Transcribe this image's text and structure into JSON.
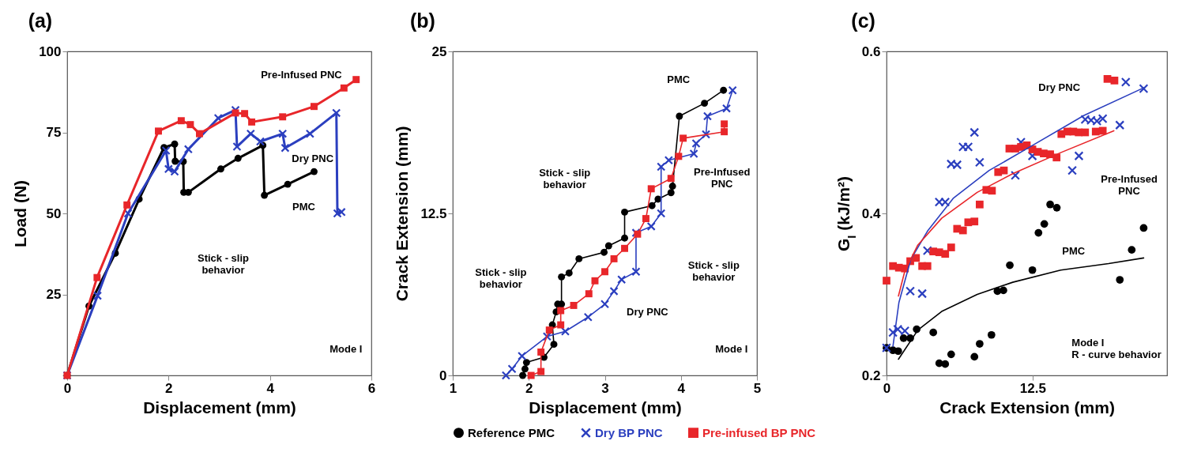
{
  "chart_data": [
    {
      "type": "line",
      "title": "(a)",
      "xlabel": "Displacement (mm)",
      "ylabel": "Load (N)",
      "xlim": [
        0,
        6
      ],
      "xticks": [
        0,
        2,
        4,
        6
      ],
      "ylim": [
        0,
        100
      ],
      "yticks": [
        {
          "value": 0,
          "label": null
        },
        25,
        50,
        75,
        100
      ],
      "grid": false,
      "x": [
        0,
        0.43,
        0.95,
        1.42,
        1.91,
        2.12,
        2.13,
        2.29,
        2.3,
        2.39,
        3.03,
        3.37,
        3.86,
        3.89,
        4.35,
        4.87
      ],
      "series": [
        {
          "color": "#000000",
          "marker": "circle",
          "values": [
            0,
            21.4,
            37.7,
            54.4,
            70.3,
            71.4,
            66.1,
            66,
            56.5,
            56.5,
            63.7,
            67,
            71,
            55.6,
            59,
            62.9
          ]
        },
        {
          "color": "#2b3fbf",
          "marker": "cross",
          "x": [
            0,
            0.6,
            1.2,
            1.95,
            2.0,
            2.12,
            2.39,
            2.98,
            3.32,
            3.35,
            3.62,
            3.81,
            4.25,
            4.3,
            4.79,
            5.31,
            5.33,
            5.41
          ],
          "values": [
            0,
            24.6,
            50,
            69.4,
            63.7,
            62.9,
            69.8,
            79.4,
            81.9,
            70.6,
            74.6,
            72.2,
            74.6,
            70.2,
            74.6,
            81,
            50,
            50.4
          ]
        },
        {
          "color": "#e8262a",
          "marker": "square",
          "x": [
            0,
            0.59,
            1.18,
            1.8,
            2.25,
            2.43,
            2.61,
            3.32,
            3.5,
            3.64,
            4.25,
            4.87,
            5.46,
            5.7
          ],
          "values": [
            0,
            30.2,
            52.6,
            75.4,
            78.6,
            77.4,
            74.6,
            81,
            80.8,
            78.2,
            79.8,
            83,
            88.7,
            91.3
          ]
        }
      ],
      "annotations": [
        "Pre-Infused PNC",
        "Dry PNC",
        "PMC",
        "Stick - slip\nbehavior",
        "Mode I"
      ]
    },
    {
      "type": "line",
      "title": "(b)",
      "xlabel": "Displacement (mm)",
      "ylabel": "Crack Extension (mm)",
      "xlim": [
        1,
        5
      ],
      "xticks": [
        1,
        2,
        3,
        4,
        5
      ],
      "ylim": [
        0,
        25
      ],
      "yticks": [
        0,
        12.5,
        25
      ],
      "grid": false,
      "legend": "bottom",
      "series": [
        {
          "name": "Reference PMC",
          "color": "#000000",
          "marker": "circle",
          "x": [
            1.92,
            1.95,
            1.97,
            2.2,
            2.33,
            2.31,
            2.36,
            2.38,
            2.43,
            2.43,
            2.53,
            2.66,
            2.99,
            3.05,
            3.26,
            3.26,
            3.62,
            3.7,
            3.87,
            3.89,
            3.98,
            4.31,
            4.56
          ],
          "values": [
            0,
            0.5,
            1.0,
            1.4,
            2.4,
            3.9,
            4.9,
            5.5,
            5.5,
            7.6,
            7.9,
            9.0,
            9.5,
            10.0,
            10.6,
            12.6,
            13.1,
            13.6,
            14.1,
            14.6,
            20.0,
            21.0,
            22.0
          ]
        },
        {
          "name": "Dry BP PNC",
          "color": "#2b3fbf",
          "marker": "cross",
          "x": [
            1.7,
            1.78,
            1.91,
            2.24,
            2.48,
            2.78,
            3.0,
            3.12,
            3.22,
            3.41,
            3.41,
            3.61,
            3.74,
            3.74,
            3.84,
            4.17,
            4.2,
            4.33,
            4.35,
            4.6,
            4.68
          ],
          "values": [
            0,
            0.5,
            1.5,
            3.0,
            3.4,
            4.5,
            5.5,
            6.5,
            7.4,
            8.0,
            11.0,
            11.5,
            12.5,
            16.1,
            16.6,
            17.1,
            17.9,
            18.6,
            20.0,
            20.6,
            22.0
          ]
        },
        {
          "name": "Pre-infused BP PNC",
          "color": "#e8262a",
          "marker": "square",
          "x": [
            2.03,
            2.16,
            2.16,
            2.27,
            2.42,
            2.42,
            2.59,
            2.79,
            2.87,
            3.0,
            3.12,
            3.26,
            3.43,
            3.54,
            3.61,
            3.87,
            3.97,
            4.03,
            4.57,
            4.57
          ],
          "values": [
            0,
            0.3,
            1.8,
            3.5,
            3.9,
            5.0,
            5.4,
            6.3,
            7.3,
            8.0,
            9.0,
            9.8,
            10.9,
            12.1,
            14.4,
            15.2,
            16.9,
            18.3,
            18.8,
            19.4
          ]
        }
      ],
      "annotations": [
        "PMC",
        "Pre-Infused\nPNC",
        "Stick - slip\nbehavior",
        "Stick - slip\nbehavior",
        "Stick - slip\nbehavior",
        "Dry PNC",
        "Mode I"
      ]
    },
    {
      "type": "scatter",
      "title": "(c)",
      "xlabel": "Crack Extension (mm)",
      "ylabel": "G$_{I}$ (kJ/m²)",
      "xlim": [
        0,
        24
      ],
      "xticks": [
        0,
        12.5
      ],
      "ylim": [
        0.2,
        0.6
      ],
      "yticks": [
        0.2,
        0.4,
        0.6
      ],
      "grid": false,
      "series": [
        {
          "color": "#000000",
          "marker": "circle",
          "x": [
            0,
            0.55,
            1.0,
            1.46,
            2.03,
            2.58,
            4.0,
            4.51,
            5.02,
            5.53,
            7.52,
            7.97,
            8.98,
            9.49,
            10.0,
            10.55,
            12.48,
            13.0,
            13.5,
            14.0,
            14.57,
            19.96,
            20.98,
            22.0
          ],
          "values": [
            0.234,
            0.231,
            0.23,
            0.246,
            0.246,
            0.257,
            0.253,
            0.215,
            0.214,
            0.226,
            0.223,
            0.239,
            0.25,
            0.304,
            0.305,
            0.336,
            0.33,
            0.376,
            0.387,
            0.411,
            0.407,
            0.318,
            0.355,
            0.382
          ]
        },
        {
          "color": "#2b3fbf",
          "marker": "cross",
          "x": [
            0,
            0.55,
            0.96,
            1.57,
            2.03,
            3.05,
            3.5,
            4.51,
            5.02,
            5.53,
            6.04,
            6.54,
            6.99,
            7.52,
            7.97,
            11.02,
            11.5,
            12.48,
            15.89,
            16.46,
            17.0,
            17.5,
            18.0,
            18.5,
            19.96,
            20.47,
            22.0
          ],
          "values": [
            0.234,
            0.253,
            0.257,
            0.255,
            0.304,
            0.301,
            0.354,
            0.414,
            0.414,
            0.461,
            0.46,
            0.482,
            0.482,
            0.5,
            0.463,
            0.447,
            0.488,
            0.471,
            0.453,
            0.471,
            0.516,
            0.515,
            0.514,
            0.517,
            0.509,
            0.562,
            0.554
          ]
        },
        {
          "color": "#e8262a",
          "marker": "square",
          "x": [
            0,
            0.55,
            1.06,
            1.57,
            2.03,
            2.52,
            3.05,
            3.5,
            4.0,
            4.51,
            5.02,
            5.53,
            6.04,
            6.54,
            6.99,
            7.52,
            7.97,
            8.54,
            9.02,
            9.55,
            10.04,
            10.51,
            11.02,
            11.5,
            12.0,
            12.48,
            12.95,
            13.45,
            14.0,
            14.55,
            14.96,
            15.47,
            15.98,
            16.44,
            16.99,
            17.9,
            18.5,
            18.9,
            19.5
          ],
          "values": [
            0.317,
            0.335,
            0.333,
            0.332,
            0.341,
            0.345,
            0.335,
            0.335,
            0.353,
            0.352,
            0.35,
            0.358,
            0.381,
            0.379,
            0.389,
            0.39,
            0.411,
            0.429,
            0.428,
            0.451,
            0.453,
            0.48,
            0.48,
            0.482,
            0.484,
            0.479,
            0.476,
            0.474,
            0.473,
            0.469,
            0.498,
            0.501,
            0.501,
            0.5,
            0.5,
            0.501,
            0.502,
            0.566,
            0.564
          ]
        },
        {
          "type": "line",
          "color": "#2b3fbf",
          "marker": "none",
          "x": [
            0.55,
            1.06,
            2.07,
            3.5,
            5.73,
            8.78,
            12.5,
            16.9,
            22.0
          ],
          "values": [
            0.236,
            0.29,
            0.343,
            0.378,
            0.419,
            0.453,
            0.484,
            0.521,
            0.555
          ]
        },
        {
          "type": "line",
          "color": "#e8262a",
          "marker": "none",
          "x": [
            1.02,
            1.57,
            2.68,
            4.72,
            7.76,
            10.8,
            14.9,
            19.45
          ],
          "values": [
            0.298,
            0.329,
            0.361,
            0.394,
            0.426,
            0.449,
            0.475,
            0.502
          ]
        },
        {
          "type": "line",
          "color": "#000000",
          "marker": "none",
          "x": [
            1.02,
            2.68,
            4.72,
            7.76,
            10.8,
            14.9,
            19.0,
            22.0
          ],
          "values": [
            0.22,
            0.256,
            0.279,
            0.3,
            0.315,
            0.33,
            0.338,
            0.345
          ]
        }
      ],
      "annotations": [
        "Dry PNC",
        "Pre-Infused\nPNC",
        "PMC",
        "Mode I\nR - curve behavior"
      ]
    }
  ]
}
